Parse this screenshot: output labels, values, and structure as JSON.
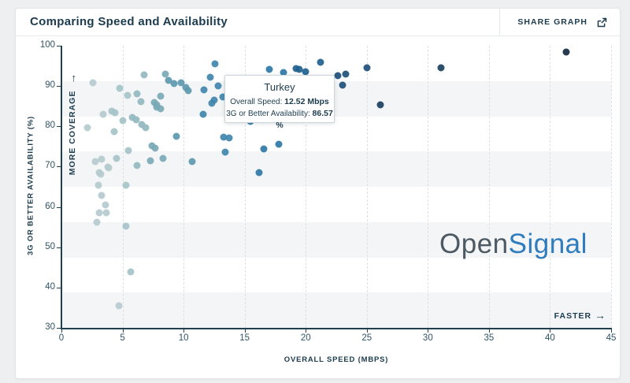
{
  "header": {
    "title": "Comparing Speed and Availability",
    "share_label": "SHARE GRAPH"
  },
  "tooltip": {
    "title": "Turkey",
    "rows": [
      {
        "label": "Overall Speed: ",
        "value": "12.52 Mbps"
      },
      {
        "label": "3G or Better Availability: ",
        "value": "86.57 %"
      }
    ]
  },
  "watermark": {
    "part1": "Open",
    "part2": "Signal",
    "part1_color": "#4d5a63",
    "part2_color": "#2f7cbf"
  },
  "chart_data": {
    "type": "scatter",
    "title": "Comparing Speed and Availability",
    "xlabel": "OVERALL SPEED (MBPS)",
    "ylabel": "3G OR BETTER AVAILABILITY (%)",
    "xlim": [
      0,
      45
    ],
    "ylim": [
      30,
      100
    ],
    "x_ticks": [
      0,
      5,
      10,
      15,
      20,
      25,
      30,
      35,
      40,
      45
    ],
    "y_ticks": [
      30,
      40,
      50,
      60,
      70,
      80,
      90,
      100
    ],
    "grid": "vertical-dashed",
    "grid_color": "#d9e2e4",
    "axis_color": "#20404f",
    "band_color": "#f4f5f6",
    "bands_gray": [
      [
        30,
        38.75
      ],
      [
        47.5,
        56.25
      ],
      [
        65,
        73.75
      ],
      [
        82.5,
        91.25
      ]
    ],
    "annotations": {
      "more_coverage": {
        "label": "MORE COVERAGE",
        "arrow": "→"
      },
      "faster": {
        "label": "FASTER",
        "arrow": "→"
      }
    },
    "highlight_point": {
      "name": "Turkey",
      "x": 12.52,
      "y": 86.57,
      "color": "#3f86ac"
    },
    "points": [
      {
        "x": 2.6,
        "y": 90.8,
        "c": "#b5cbce"
      },
      {
        "x": 2.1,
        "y": 79.6,
        "c": "#b5cbce"
      },
      {
        "x": 3.4,
        "y": 82.9,
        "c": "#b5cbce"
      },
      {
        "x": 2.8,
        "y": 71.2,
        "c": "#b5cbce"
      },
      {
        "x": 3.3,
        "y": 71.9,
        "c": "#b5cbce"
      },
      {
        "x": 3.8,
        "y": 69.9,
        "c": "#b5cbce"
      },
      {
        "x": 3.9,
        "y": 69.7,
        "c": "#b5cbce"
      },
      {
        "x": 3.1,
        "y": 68.5,
        "c": "#b5cbce"
      },
      {
        "x": 3.2,
        "y": 68.2,
        "c": "#b5cbce"
      },
      {
        "x": 3.0,
        "y": 65.4,
        "c": "#b5cbce"
      },
      {
        "x": 3.3,
        "y": 62.9,
        "c": "#b5cbce"
      },
      {
        "x": 3.6,
        "y": 60.6,
        "c": "#b5cbce"
      },
      {
        "x": 3.1,
        "y": 58.5,
        "c": "#b5cbce"
      },
      {
        "x": 3.7,
        "y": 58.6,
        "c": "#b5cbce"
      },
      {
        "x": 2.9,
        "y": 56.2,
        "c": "#b5cbce"
      },
      {
        "x": 4.7,
        "y": 35.4,
        "c": "#b5cbce"
      },
      {
        "x": 4.1,
        "y": 83.7,
        "c": "#a6c3c8"
      },
      {
        "x": 4.4,
        "y": 83.4,
        "c": "#a6c3c8"
      },
      {
        "x": 4.8,
        "y": 89.4,
        "c": "#a6c3c8"
      },
      {
        "x": 5.4,
        "y": 87.7,
        "c": "#a6c3c8"
      },
      {
        "x": 4.5,
        "y": 72.0,
        "c": "#a6c3c8"
      },
      {
        "x": 5.3,
        "y": 65.3,
        "c": "#a6c3c8"
      },
      {
        "x": 5.3,
        "y": 55.2,
        "c": "#a6c3c8"
      },
      {
        "x": 5.7,
        "y": 43.9,
        "c": "#a6c3c8"
      },
      {
        "x": 5.5,
        "y": 73.9,
        "c": "#a6c3c8"
      },
      {
        "x": 4.3,
        "y": 78.7,
        "c": "#a6c3c8"
      },
      {
        "x": 5.0,
        "y": 81.4,
        "c": "#a6c3c8"
      },
      {
        "x": 6.2,
        "y": 88.0,
        "c": "#93b8c0"
      },
      {
        "x": 6.5,
        "y": 86.1,
        "c": "#93b8c0"
      },
      {
        "x": 5.8,
        "y": 82.2,
        "c": "#93b8c0"
      },
      {
        "x": 6.1,
        "y": 81.6,
        "c": "#93b8c0"
      },
      {
        "x": 6.6,
        "y": 80.4,
        "c": "#93b8c0"
      },
      {
        "x": 6.9,
        "y": 79.6,
        "c": "#93b8c0"
      },
      {
        "x": 6.2,
        "y": 70.3,
        "c": "#93b8c0"
      },
      {
        "x": 6.8,
        "y": 92.7,
        "c": "#93b8c0"
      },
      {
        "x": 7.6,
        "y": 85.9,
        "c": "#7aa9b6"
      },
      {
        "x": 7.8,
        "y": 85.4,
        "c": "#7aa9b6"
      },
      {
        "x": 8.1,
        "y": 87.4,
        "c": "#7aa9b6"
      },
      {
        "x": 7.8,
        "y": 84.7,
        "c": "#7aa9b6"
      },
      {
        "x": 8.1,
        "y": 84.4,
        "c": "#7aa9b6"
      },
      {
        "x": 8.5,
        "y": 92.9,
        "c": "#7aa9b6"
      },
      {
        "x": 7.4,
        "y": 75.1,
        "c": "#7aa9b6"
      },
      {
        "x": 7.7,
        "y": 74.6,
        "c": "#7aa9b6"
      },
      {
        "x": 8.3,
        "y": 72.0,
        "c": "#7aa9b6"
      },
      {
        "x": 7.3,
        "y": 71.5,
        "c": "#7aa9b6"
      },
      {
        "x": 8.8,
        "y": 91.4,
        "c": "#5d98ae"
      },
      {
        "x": 9.2,
        "y": 90.7,
        "c": "#5d98ae"
      },
      {
        "x": 9.8,
        "y": 90.9,
        "c": "#5d98ae"
      },
      {
        "x": 10.2,
        "y": 89.6,
        "c": "#5d98ae"
      },
      {
        "x": 10.4,
        "y": 88.8,
        "c": "#5d98ae"
      },
      {
        "x": 9.4,
        "y": 77.5,
        "c": "#5d98ae"
      },
      {
        "x": 10.7,
        "y": 71.3,
        "c": "#5d98ae"
      },
      {
        "x": 11.7,
        "y": 89.0,
        "c": "#3f86ac"
      },
      {
        "x": 12.2,
        "y": 92.1,
        "c": "#3f86ac"
      },
      {
        "x": 12.6,
        "y": 95.6,
        "c": "#3f86ac"
      },
      {
        "x": 12.8,
        "y": 90.1,
        "c": "#3f86ac"
      },
      {
        "x": 13.2,
        "y": 87.3,
        "c": "#3f86ac"
      },
      {
        "x": 12.3,
        "y": 85.7,
        "c": "#3f86ac"
      },
      {
        "x": 11.6,
        "y": 82.9,
        "c": "#3f86ac"
      },
      {
        "x": 13.3,
        "y": 77.4,
        "c": "#3f86ac"
      },
      {
        "x": 13.7,
        "y": 77.2,
        "c": "#3f86ac"
      },
      {
        "x": 13.4,
        "y": 73.6,
        "c": "#3f86ac"
      },
      {
        "x": 15.5,
        "y": 81.2,
        "c": "#2e78a6"
      },
      {
        "x": 16.6,
        "y": 74.3,
        "c": "#2e78a6"
      },
      {
        "x": 17.8,
        "y": 75.5,
        "c": "#2e78a6"
      },
      {
        "x": 16.2,
        "y": 68.5,
        "c": "#2e78a6"
      },
      {
        "x": 17.0,
        "y": 94.1,
        "c": "#2e78a6"
      },
      {
        "x": 18.2,
        "y": 93.4,
        "c": "#2e78a6"
      },
      {
        "x": 19.2,
        "y": 94.4,
        "c": "#21618f"
      },
      {
        "x": 19.5,
        "y": 94.1,
        "c": "#21618f"
      },
      {
        "x": 20.0,
        "y": 93.5,
        "c": "#21618f"
      },
      {
        "x": 21.2,
        "y": 95.8,
        "c": "#21618f"
      },
      {
        "x": 22.6,
        "y": 92.6,
        "c": "#1d4f78"
      },
      {
        "x": 23.3,
        "y": 93.0,
        "c": "#1d4f78"
      },
      {
        "x": 23.0,
        "y": 90.2,
        "c": "#1d4f78"
      },
      {
        "x": 25.0,
        "y": 94.6,
        "c": "#1d4f78"
      },
      {
        "x": 26.1,
        "y": 85.3,
        "c": "#1a3f61"
      },
      {
        "x": 31.1,
        "y": 94.5,
        "c": "#1a3f61"
      },
      {
        "x": 41.3,
        "y": 98.5,
        "c": "#142a40"
      }
    ]
  }
}
